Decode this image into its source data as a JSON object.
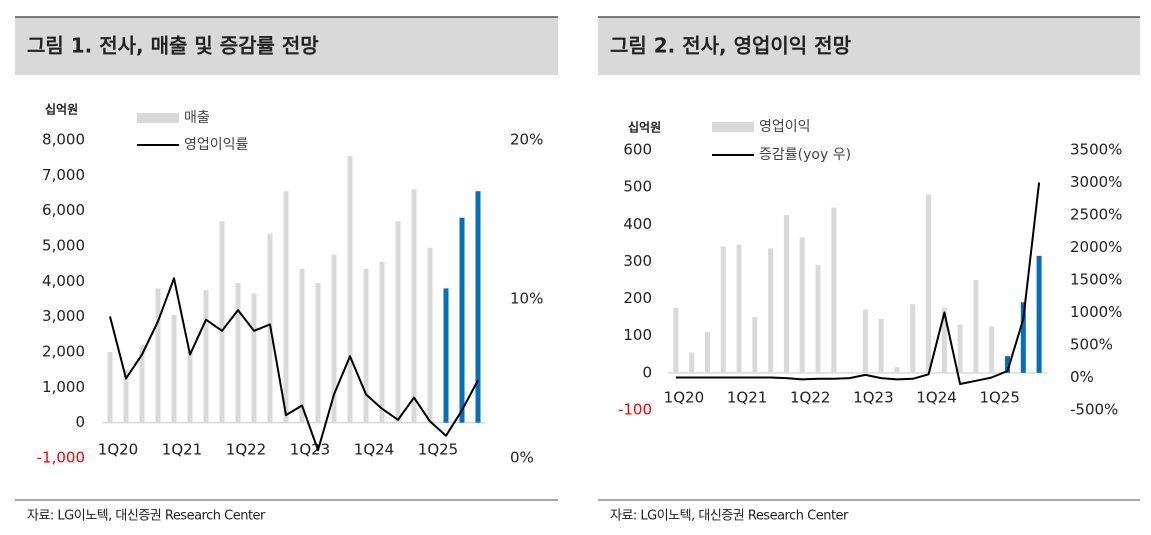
{
  "chart_data": [
    {
      "type": "combo",
      "title": "그림 1. 전사, 매출 및 증감률 전망",
      "unit": "십억원",
      "source": "자료: LG이노텍, 대신증권 Research Center",
      "categories": [
        "1Q20",
        null,
        null,
        null,
        "1Q21",
        null,
        null,
        null,
        "1Q22",
        null,
        null,
        null,
        "1Q23",
        null,
        null,
        null,
        "1Q24",
        null,
        null,
        null,
        "1Q25",
        null,
        null,
        null
      ],
      "series": [
        {
          "name": "매출",
          "kind": "bar",
          "color": "#d9d9d9",
          "values": [
            2000,
            1500,
            2200,
            3800,
            3050,
            2000,
            3750,
            5700,
            3950,
            3650,
            5350,
            6550,
            4350,
            3950,
            4750,
            7550,
            4350,
            4550,
            5700,
            6600,
            4950,
            3800,
            5800,
            6550
          ],
          "bar_colors": [
            "#d9d9d9",
            "#d9d9d9",
            "#d9d9d9",
            "#d9d9d9",
            "#d9d9d9",
            "#d9d9d9",
            "#d9d9d9",
            "#d9d9d9",
            "#d9d9d9",
            "#d9d9d9",
            "#d9d9d9",
            "#d9d9d9",
            "#d9d9d9",
            "#d9d9d9",
            "#d9d9d9",
            "#d9d9d9",
            "#d9d9d9",
            "#d9d9d9",
            "#d9d9d9",
            "#d9d9d9",
            "#d9d9d9",
            "#0070c0",
            "#0070c0",
            "#0070c0"
          ]
        },
        {
          "name": "영업이익률",
          "kind": "line",
          "axis": "y2",
          "color": "#000000",
          "values": [
            8.9,
            5.0,
            6.5,
            8.6,
            11.3,
            6.5,
            8.7,
            8.0,
            9.3,
            8.0,
            8.4,
            2.7,
            3.3,
            0.5,
            4.0,
            6.4,
            4.0,
            3.1,
            2.4,
            3.8,
            2.3,
            1.4,
            3.0,
            4.9
          ]
        }
      ],
      "ylim": [
        -1000,
        8000
      ],
      "yticks": [
        {
          "value": -1000,
          "label": "-1,000"
        },
        0,
        {
          "value": 1000,
          "label": "1,000"
        },
        {
          "value": 2000,
          "label": "2,000"
        },
        {
          "value": 3000,
          "label": "3,000"
        },
        {
          "value": 4000,
          "label": "4,000"
        },
        {
          "value": 5000,
          "label": "5,000"
        },
        {
          "value": 6000,
          "label": "6,000"
        },
        {
          "value": 7000,
          "label": "7,000"
        },
        {
          "value": 8000,
          "label": "8,000"
        }
      ],
      "y2lim": [
        0,
        20
      ],
      "y2ticks": [
        {
          "value": 0,
          "label": "0%"
        },
        {
          "value": 10,
          "label": "10%"
        },
        {
          "value": 20,
          "label": "20%"
        }
      ],
      "negative_tick_color": "#ff0000",
      "grid": false
    },
    {
      "type": "combo",
      "title": "그림 2. 전사, 영업이익 전망",
      "unit": "십억원",
      "source": "자료: LG이노텍, 대신증권 Research Center",
      "categories": [
        "1Q20",
        null,
        null,
        null,
        "1Q21",
        null,
        null,
        null,
        "1Q22",
        null,
        null,
        null,
        "1Q23",
        null,
        null,
        null,
        "1Q24",
        null,
        null,
        null,
        "1Q25",
        null,
        null,
        null
      ],
      "series": [
        {
          "name": "영업이익",
          "kind": "bar",
          "color": "#d9d9d9",
          "values": [
            175,
            55,
            110,
            340,
            345,
            150,
            335,
            425,
            365,
            290,
            445,
            3,
            170,
            145,
            15,
            185,
            480,
            175,
            130,
            250,
            125,
            45,
            190,
            315
          ],
          "bar_colors": [
            "#d9d9d9",
            "#d9d9d9",
            "#d9d9d9",
            "#d9d9d9",
            "#d9d9d9",
            "#d9d9d9",
            "#d9d9d9",
            "#d9d9d9",
            "#d9d9d9",
            "#d9d9d9",
            "#d9d9d9",
            "#d9d9d9",
            "#d9d9d9",
            "#d9d9d9",
            "#d9d9d9",
            "#d9d9d9",
            "#d9d9d9",
            "#d9d9d9",
            "#d9d9d9",
            "#d9d9d9",
            "#d9d9d9",
            "#0070c0",
            "#0070c0",
            "#0070c0"
          ]
        },
        {
          "name": "증감률(yoy 우)",
          "kind": "line",
          "axis": "y2",
          "color": "#000000",
          "values": [
            0,
            0,
            0,
            0,
            0,
            0,
            0,
            -10,
            -30,
            -20,
            -20,
            -10,
            40,
            -10,
            -30,
            -20,
            50,
            1000,
            -100,
            -50,
            0,
            100,
            900,
            3000
          ]
        }
      ],
      "ylim": [
        -100,
        600
      ],
      "yticks": [
        -100,
        0,
        100,
        200,
        300,
        400,
        500,
        600
      ],
      "y2lim": [
        -500,
        3500
      ],
      "y2ticks": [
        {
          "value": -500,
          "label": "-500%"
        },
        {
          "value": 0,
          "label": "0%"
        },
        {
          "value": 500,
          "label": "500%"
        },
        {
          "value": 1000,
          "label": "1000%"
        },
        {
          "value": 1500,
          "label": "1500%"
        },
        {
          "value": 2000,
          "label": "2000%"
        },
        {
          "value": 2500,
          "label": "2500%"
        },
        {
          "value": 3000,
          "label": "3000%"
        },
        {
          "value": 3500,
          "label": "3500%"
        }
      ],
      "negative_tick_color": "#ff0000",
      "grid": false
    }
  ]
}
